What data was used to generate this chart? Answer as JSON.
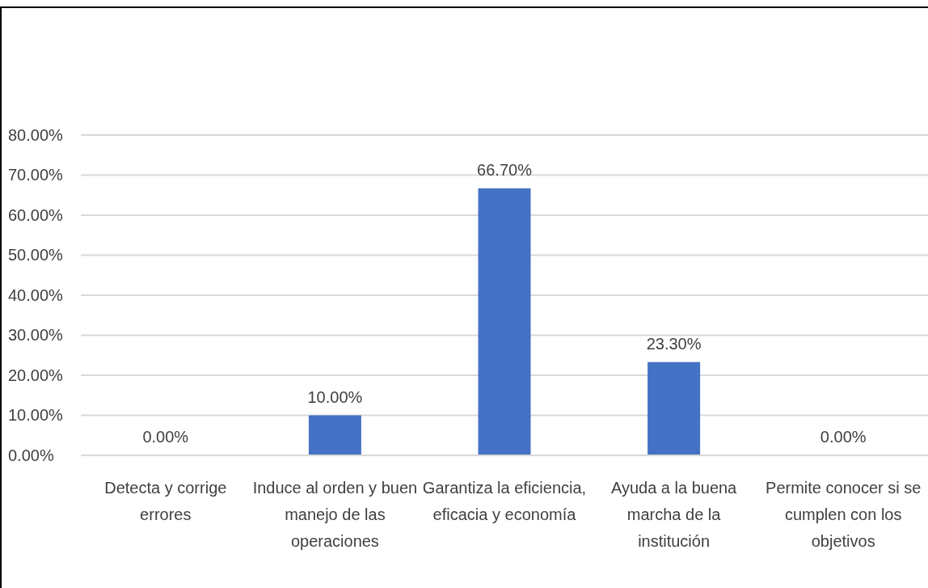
{
  "chart_data": {
    "type": "bar",
    "categories": [
      "Detecta y corrige errores",
      "Induce al orden y buen manejo de las operaciones",
      "Garantiza la eficiencia, eficacia y economía",
      "Ayuda a la buena marcha de la institución",
      "Permite conocer si se cumplen con los objetivos"
    ],
    "values": [
      0,
      10,
      66.7,
      23.3,
      0
    ],
    "value_labels": [
      "0.00%",
      "10.00%",
      "66.70%",
      "23.30%",
      "0.00%"
    ],
    "color": "#4472c4",
    "ylim": [
      0,
      80
    ],
    "yticks": [
      {
        "value": 0,
        "label": "0.00%"
      },
      {
        "value": 10,
        "label": "10.00%"
      },
      {
        "value": 20,
        "label": "20.00%"
      },
      {
        "value": 30,
        "label": "30.00%"
      },
      {
        "value": 40,
        "label": "40.00%"
      },
      {
        "value": 50,
        "label": "50.00%"
      },
      {
        "value": 60,
        "label": "60.00%"
      },
      {
        "value": 70,
        "label": "70.00%"
      },
      {
        "value": 80,
        "label": "80.00%"
      }
    ],
    "grid": "y"
  }
}
